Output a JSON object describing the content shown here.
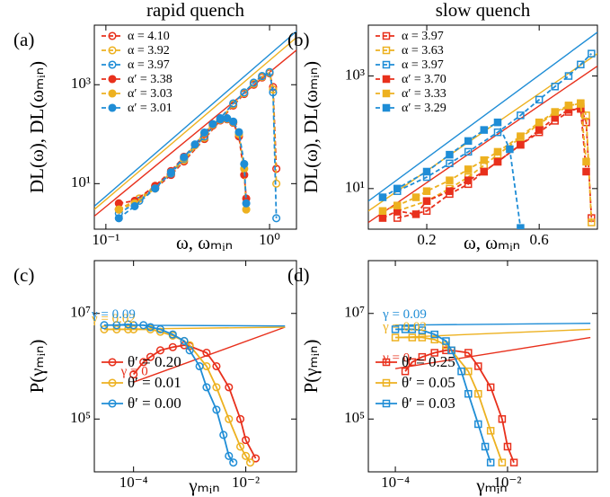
{
  "chart_data": [
    {
      "type": "line",
      "title": "rapid quench",
      "panel_label": "(a)",
      "xlabel": "ω, ωₘᵢₙ",
      "ylabel": "DL(ω), DL(ωₘᵢₙ)",
      "xscale": "log",
      "yscale": "log",
      "xlim": [
        0.085,
        1.46
      ],
      "ylim": [
        1.2,
        16000
      ],
      "xticks": [
        {
          "value": 0.1,
          "label": "10⁻¹"
        },
        {
          "value": 1,
          "label": "10⁰"
        }
      ],
      "yticks": [
        {
          "value": 10,
          "label": "10¹"
        },
        {
          "value": 1000,
          "label": "10³"
        }
      ],
      "grid": false,
      "legend": "upper left",
      "fits": [
        {
          "color": "#e8301c",
          "x": [
            0.085,
            1.46
          ],
          "values": [
            2.2,
            5000
          ]
        },
        {
          "color": "#edb120",
          "x": [
            0.085,
            1.46
          ],
          "values": [
            3,
            9000
          ]
        },
        {
          "color": "#1f8dd6",
          "x": [
            0.085,
            1.46
          ],
          "values": [
            3.5,
            12000
          ]
        }
      ],
      "series": [
        {
          "name": "α = 4.10",
          "color": "#e8301c",
          "marker": "circle",
          "filled": false,
          "linestyle": "dashed",
          "x": [
            0.12,
            0.16,
            0.2,
            0.25,
            0.3,
            0.4,
            0.5,
            0.6,
            0.7,
            0.8,
            0.9,
            1.0,
            1.05,
            1.1
          ],
          "values": [
            3,
            5,
            8,
            15,
            28,
            80,
            190,
            380,
            650,
            1000,
            1400,
            1700,
            900,
            20
          ]
        },
        {
          "name": "α = 3.92",
          "color": "#edb120",
          "marker": "circle",
          "filled": false,
          "linestyle": "dashed",
          "x": [
            0.12,
            0.16,
            0.2,
            0.25,
            0.3,
            0.4,
            0.5,
            0.6,
            0.7,
            0.8,
            0.9,
            1.0,
            1.05,
            1.1
          ],
          "values": [
            3,
            5,
            9,
            16,
            30,
            85,
            200,
            400,
            680,
            1050,
            1450,
            1750,
            800,
            10
          ]
        },
        {
          "name": "α = 3.97",
          "color": "#1f8dd6",
          "marker": "circle",
          "filled": false,
          "linestyle": "dashed",
          "x": [
            0.12,
            0.16,
            0.2,
            0.25,
            0.3,
            0.4,
            0.5,
            0.6,
            0.7,
            0.8,
            0.9,
            1.0,
            1.05,
            1.1
          ],
          "values": [
            2.5,
            4.5,
            8.5,
            16,
            32,
            90,
            210,
            420,
            700,
            1100,
            1500,
            1800,
            700,
            2
          ]
        },
        {
          "name": "α′ = 3.38",
          "color": "#e8301c",
          "marker": "circle",
          "filled": true,
          "linestyle": "dashed",
          "x": [
            0.12,
            0.15,
            0.2,
            0.25,
            0.3,
            0.35,
            0.4,
            0.45,
            0.5,
            0.55,
            0.6,
            0.65,
            0.7,
            0.72
          ],
          "values": [
            4,
            4.5,
            9,
            18,
            35,
            60,
            100,
            150,
            190,
            200,
            170,
            90,
            15,
            5
          ]
        },
        {
          "name": "α′ = 3.03",
          "color": "#edb120",
          "marker": "circle",
          "filled": true,
          "linestyle": "dashed",
          "x": [
            0.12,
            0.15,
            0.2,
            0.25,
            0.3,
            0.35,
            0.4,
            0.45,
            0.5,
            0.55,
            0.6,
            0.65,
            0.7,
            0.72
          ],
          "values": [
            3,
            4,
            8,
            17,
            33,
            60,
            105,
            155,
            195,
            205,
            175,
            100,
            20,
            3
          ]
        },
        {
          "name": "α′ = 3.01",
          "color": "#1f8dd6",
          "marker": "circle",
          "filled": true,
          "linestyle": "dashed",
          "x": [
            0.12,
            0.15,
            0.2,
            0.25,
            0.3,
            0.35,
            0.4,
            0.45,
            0.5,
            0.55,
            0.6,
            0.65,
            0.7,
            0.72
          ],
          "values": [
            2,
            3.5,
            8,
            17,
            34,
            62,
            108,
            160,
            200,
            210,
            180,
            110,
            25,
            4
          ]
        }
      ]
    },
    {
      "type": "line",
      "title": "slow quench",
      "panel_label": "(b)",
      "xlabel": "ω, ωₘᵢₙ",
      "ylabel": "DL(ω), DL(ωₘᵢₙ)",
      "xscale": "log",
      "yscale": "log",
      "xlim": [
        0.113,
        1.06
      ],
      "ylim": [
        1.9,
        8000
      ],
      "xticks": [
        0.2,
        0.6
      ],
      "yticks": [
        {
          "value": 10,
          "label": "10¹"
        },
        {
          "value": 1000,
          "label": "10³"
        }
      ],
      "grid": false,
      "legend": "upper left",
      "fits": [
        {
          "color": "#e8301c",
          "x": [
            0.113,
            1.06
          ],
          "values": [
            2.5,
            1500
          ]
        },
        {
          "color": "#edb120",
          "x": [
            0.113,
            1.06
          ],
          "values": [
            4,
            2500
          ]
        },
        {
          "color": "#1f8dd6",
          "x": [
            0.113,
            1.06
          ],
          "values": [
            6,
            6000
          ]
        }
      ],
      "series": [
        {
          "name": "α = 3.97",
          "color": "#e8301c",
          "marker": "square",
          "filled": false,
          "linestyle": "dashed",
          "x": [
            0.15,
            0.2,
            0.25,
            0.3,
            0.35,
            0.4,
            0.5,
            0.6,
            0.7,
            0.8,
            0.9,
            0.95,
            1.0
          ],
          "values": [
            3,
            4,
            8,
            12,
            20,
            30,
            60,
            100,
            160,
            230,
            280,
            150,
            3
          ]
        },
        {
          "name": "α = 3.63",
          "color": "#edb120",
          "marker": "square",
          "filled": false,
          "linestyle": "dashed",
          "x": [
            0.15,
            0.2,
            0.25,
            0.3,
            0.35,
            0.4,
            0.5,
            0.6,
            0.7,
            0.8,
            0.9,
            0.95,
            1.0
          ],
          "values": [
            4,
            6,
            10,
            16,
            26,
            40,
            80,
            140,
            220,
            290,
            330,
            200,
            2.5
          ]
        },
        {
          "name": "α = 3.97",
          "color": "#1f8dd6",
          "marker": "square",
          "filled": false,
          "linestyle": "dashed",
          "x": [
            0.15,
            0.2,
            0.25,
            0.3,
            0.4,
            0.5,
            0.6,
            0.7,
            0.8,
            0.9,
            1.0
          ],
          "values": [
            9,
            16,
            28,
            45,
            100,
            200,
            380,
            650,
            1000,
            1600,
            2500
          ]
        },
        {
          "name": "α′ = 3.70",
          "color": "#e8301c",
          "marker": "square",
          "filled": true,
          "linestyle": "dashed",
          "x": [
            0.13,
            0.15,
            0.18,
            0.2,
            0.25,
            0.3,
            0.35,
            0.4,
            0.5,
            0.6,
            0.7,
            0.8,
            0.9,
            0.95
          ],
          "values": [
            3,
            4,
            3.5,
            6,
            9,
            14,
            20,
            30,
            60,
            110,
            180,
            250,
            260,
            20
          ]
        },
        {
          "name": "α′ = 3.33",
          "color": "#edb120",
          "marker": "square",
          "filled": true,
          "linestyle": "dashed",
          "x": [
            0.13,
            0.15,
            0.18,
            0.2,
            0.25,
            0.3,
            0.35,
            0.4,
            0.5,
            0.6,
            0.7,
            0.8,
            0.9,
            0.95
          ],
          "values": [
            4,
            5,
            7,
            9,
            14,
            22,
            32,
            45,
            85,
            150,
            230,
            300,
            320,
            30
          ]
        },
        {
          "name": "α′ = 3.29",
          "color": "#1f8dd6",
          "marker": "square",
          "filled": true,
          "linestyle": "dashed",
          "x": [
            0.13,
            0.15,
            0.2,
            0.25,
            0.3,
            0.35,
            0.4,
            0.45,
            0.5
          ],
          "values": [
            7,
            10,
            20,
            40,
            70,
            110,
            150,
            50,
            2
          ]
        }
      ]
    },
    {
      "type": "line",
      "panel_label": "(c)",
      "xlabel": "γₘᵢₙ",
      "ylabel": "P(γₘᵢₙ)",
      "xscale": "log",
      "yscale": "log",
      "xlim": [
        2e-05,
        0.08
      ],
      "ylim": [
        10000,
        100000000
      ],
      "xticks": [
        {
          "value": 0.0001,
          "label": "10⁻⁴"
        },
        {
          "value": 0.01,
          "label": "10⁻²"
        }
      ],
      "yticks": [
        {
          "value": 100000,
          "label": "10⁵"
        },
        {
          "value": 10000000,
          "label": "10⁷"
        }
      ],
      "grid": false,
      "legend": "lower left",
      "fits": [
        {
          "color": "#e8301c",
          "x": [
            0.0001,
            0.05
          ],
          "values": [
            500000,
            5500000
          ],
          "label": "γ = 0"
        },
        {
          "color": "#edb120",
          "x": [
            3e-05,
            0.05
          ],
          "values": [
            5000000,
            5500000
          ],
          "label": "γ = 0.02"
        },
        {
          "color": "#1f8dd6",
          "x": [
            3e-05,
            0.05
          ],
          "values": [
            6000000,
            5800000
          ],
          "label": "γ = 0.09"
        }
      ],
      "series": [
        {
          "name": "θ′ = 0.20",
          "color": "#e8301c",
          "marker": "circle",
          "filled": false,
          "linestyle": "solid",
          "x": [
            0.0001,
            0.00015,
            0.0002,
            0.0003,
            0.0005,
            0.0008,
            0.001,
            0.002,
            0.003,
            0.005,
            0.008,
            0.01,
            0.015
          ],
          "values": [
            700000,
            1200000,
            1500000,
            2000000,
            2300000,
            2500000,
            2400000,
            1800000,
            1000000,
            400000,
            100000,
            40000,
            18000
          ]
        },
        {
          "name": "θ′ = 0.01",
          "color": "#edb120",
          "marker": "circle",
          "filled": false,
          "linestyle": "solid",
          "x": [
            3e-05,
            5e-05,
            8e-05,
            0.0001,
            0.0002,
            0.0003,
            0.0005,
            0.0008,
            0.001,
            0.002,
            0.003,
            0.005,
            0.008,
            0.01,
            0.012
          ],
          "values": [
            5000000,
            5000000,
            5000000,
            5000000,
            5000000,
            4500000,
            3800000,
            3000000,
            2500000,
            1000000,
            400000,
            100000,
            30000,
            20000,
            15000
          ]
        },
        {
          "name": "θ′ = 0.00",
          "color": "#1f8dd6",
          "marker": "circle",
          "filled": false,
          "linestyle": "solid",
          "x": [
            3e-05,
            5e-05,
            8e-05,
            0.0001,
            0.00015,
            0.0002,
            0.0003,
            0.0005,
            0.0008,
            0.001,
            0.0015,
            0.002,
            0.003,
            0.004,
            0.005,
            0.006
          ],
          "values": [
            6000000,
            6000000,
            6200000,
            6000000,
            6000000,
            5500000,
            5000000,
            4000000,
            3000000,
            2000000,
            1000000,
            400000,
            150000,
            50000,
            20000,
            15000
          ]
        }
      ]
    },
    {
      "type": "line",
      "panel_label": "(d)",
      "xlabel": "γₘᵢₙ",
      "ylabel": "P(γₘᵢₙ)",
      "xscale": "log",
      "yscale": "log",
      "xlim": [
        3.3e-05,
        0.4
      ],
      "ylim": [
        10000,
        100000000
      ],
      "xticks": [
        {
          "value": 0.0001,
          "label": "10⁻⁴"
        },
        {
          "value": 0.01,
          "label": "10⁻²"
        }
      ],
      "yticks": [
        {
          "value": 100000,
          "label": "10⁵"
        },
        {
          "value": 10000000,
          "label": "10⁷"
        }
      ],
      "grid": false,
      "legend": "lower left",
      "fits": [
        {
          "color": "#e8301c",
          "x": [
            0.0001,
            0.3
          ],
          "values": [
            900000,
            3500000
          ],
          "label": "γ = 0"
        },
        {
          "color": "#edb120",
          "x": [
            0.0001,
            0.3
          ],
          "values": [
            3500000,
            5000000
          ],
          "label": "γ = 0.02"
        },
        {
          "color": "#1f8dd6",
          "x": [
            0.0001,
            0.3
          ],
          "values": [
            6000000,
            6500000
          ],
          "label": "γ = 0.09"
        }
      ],
      "series": [
        {
          "name": "θ′ = 0.25",
          "color": "#e8301c",
          "marker": "square",
          "filled": false,
          "linestyle": "solid",
          "x": [
            0.00015,
            0.0002,
            0.0003,
            0.0005,
            0.0008,
            0.001,
            0.002,
            0.003,
            0.005,
            0.008,
            0.01,
            0.013
          ],
          "values": [
            800000,
            1200000,
            1500000,
            1800000,
            2000000,
            2000000,
            1800000,
            1000000,
            400000,
            100000,
            30000,
            15000
          ]
        },
        {
          "name": "θ′ = 0.05",
          "color": "#edb120",
          "marker": "square",
          "filled": false,
          "linestyle": "solid",
          "x": [
            0.0001,
            0.0002,
            0.0003,
            0.0005,
            0.0008,
            0.001,
            0.002,
            0.003,
            0.005,
            0.008
          ],
          "values": [
            3500000,
            3500000,
            3500000,
            3200000,
            2500000,
            2000000,
            800000,
            300000,
            60000,
            15000
          ]
        },
        {
          "name": "θ′ = 0.03",
          "color": "#1f8dd6",
          "marker": "square",
          "filled": false,
          "linestyle": "solid",
          "x": [
            0.0001,
            0.00015,
            0.0002,
            0.0003,
            0.0005,
            0.0008,
            0.001,
            0.0015,
            0.002,
            0.003,
            0.004,
            0.005
          ],
          "values": [
            5000000,
            5000000,
            5000000,
            4800000,
            4000000,
            3000000,
            2000000,
            800000,
            300000,
            80000,
            30000,
            15000
          ]
        }
      ]
    }
  ]
}
